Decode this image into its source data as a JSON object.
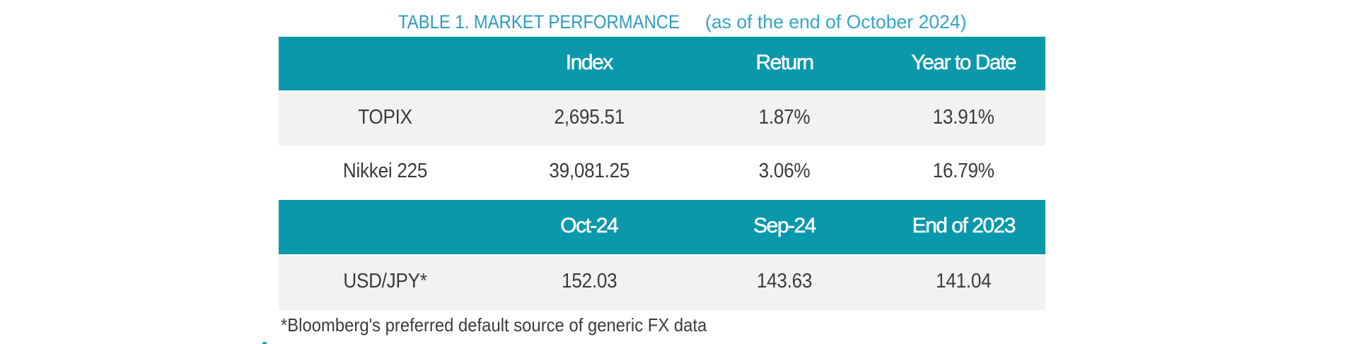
{
  "title": {
    "main": "TABLE 1. MARKET PERFORMANCE",
    "suffix": "(as of the end of October 2024)"
  },
  "table": {
    "section1": {
      "headers": [
        "",
        "Index",
        "Return",
        "Year to Date"
      ],
      "rows": [
        [
          "TOPIX",
          "2,695.51",
          "1.87%",
          "13.91%"
        ],
        [
          "Nikkei 225",
          "39,081.25",
          "3.06%",
          "16.79%"
        ]
      ]
    },
    "section2": {
      "headers": [
        "",
        "Oct-24",
        "Sep-24",
        "End of 2023"
      ],
      "rows": [
        [
          "USD/JPY*",
          "152.03",
          "143.63",
          "141.04"
        ]
      ]
    }
  },
  "footnote": "*Bloomberg's preferred default source of generic FX data",
  "colors": {
    "header_band": "#0a98ab",
    "header_text": "#ffffff",
    "row_gray": "#f2f2f0",
    "row_white": "#ffffff",
    "body_text": "#3b3b3b",
    "title_main": "#2a9cbe",
    "title_suffix": "#35a5c8",
    "page_background": "#ffffff"
  },
  "chart_data": {
    "type": "table",
    "title": "TABLE 1. MARKET PERFORMANCE (as of the end of October 2024)",
    "sections": [
      {
        "columns": [
          "",
          "Index",
          "Return",
          "Year to Date"
        ],
        "rows": [
          {
            "label": "TOPIX",
            "index": 2695.51,
            "return_pct": 1.87,
            "year_to_date_pct": 13.91
          },
          {
            "label": "Nikkei 225",
            "index": 39081.25,
            "return_pct": 3.06,
            "year_to_date_pct": 16.79
          }
        ]
      },
      {
        "columns": [
          "",
          "Oct-24",
          "Sep-24",
          "End of 2023"
        ],
        "rows": [
          {
            "label": "USD/JPY*",
            "oct_24": 152.03,
            "sep_24": 143.63,
            "end_of_2023": 141.04
          }
        ]
      }
    ],
    "footnote": "*Bloomberg's preferred default source of generic FX data"
  }
}
